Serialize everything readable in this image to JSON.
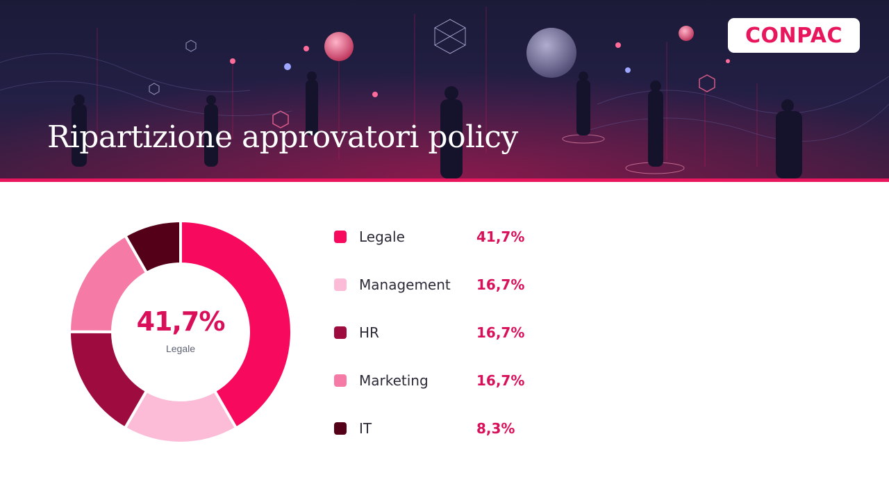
{
  "header": {
    "title": "Ripartizione approvatori policy",
    "logo_text": "CONPAC"
  },
  "colors": {
    "accent": "#e8175d",
    "value_text": "#d90f5a",
    "banner_dark": "#1b1b38"
  },
  "center": {
    "value": "41,7%",
    "label": "Legale"
  },
  "chart_data": {
    "type": "pie",
    "variant": "donut",
    "title": "",
    "series": [
      {
        "name": "Legale",
        "value": 41.7,
        "label": "41,7%",
        "color": "#f70a5d"
      },
      {
        "name": "Management",
        "value": 16.7,
        "label": "16,7%",
        "color": "#fcbcd8"
      },
      {
        "name": "HR",
        "value": 16.7,
        "label": "16,7%",
        "color": "#9e0b3f"
      },
      {
        "name": "Marketing",
        "value": 16.7,
        "label": "16,7%",
        "color": "#f57aa6"
      },
      {
        "name": "IT",
        "value": 8.3,
        "label": "8,3%",
        "color": "#540018"
      }
    ],
    "legend_position": "right"
  }
}
